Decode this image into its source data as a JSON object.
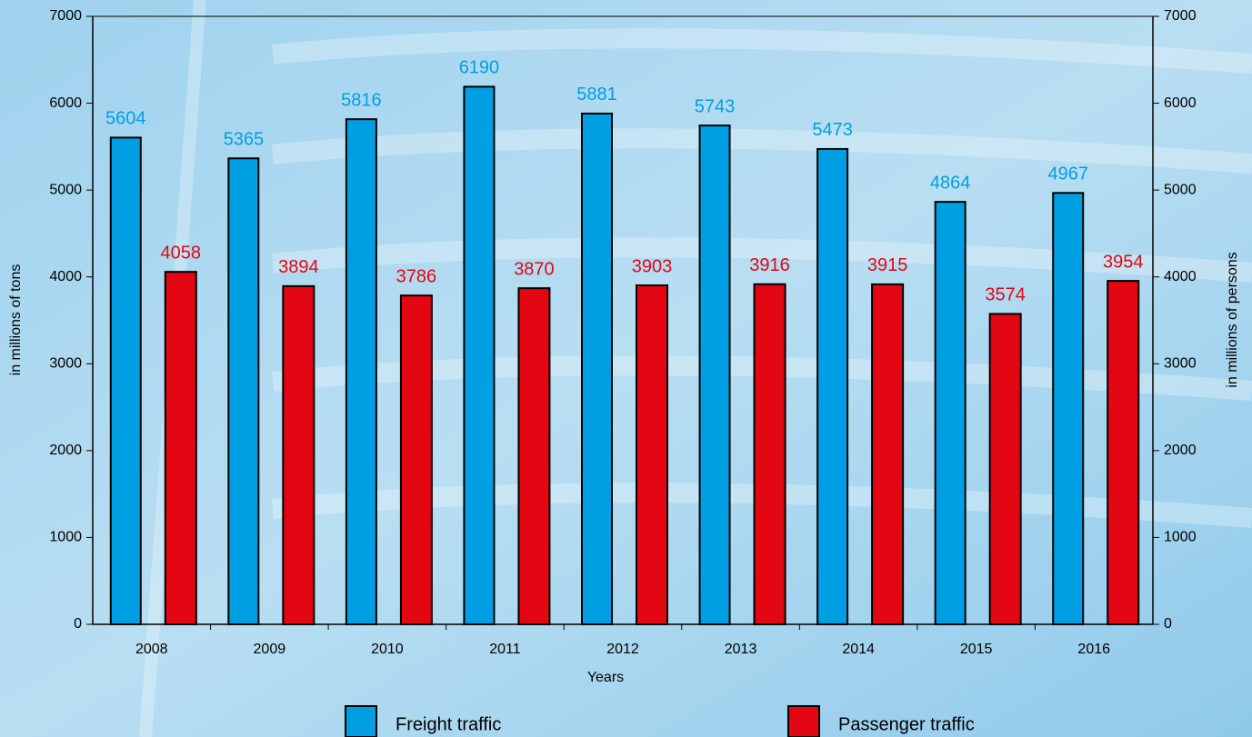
{
  "chart_data": {
    "type": "bar",
    "categories": [
      "2008",
      "2009",
      "2010",
      "2011",
      "2012",
      "2013",
      "2014",
      "2015",
      "2016"
    ],
    "series": [
      {
        "name": "Freight traffic",
        "color": "#009fe3",
        "values": [
          5604,
          5365,
          5816,
          6190,
          5881,
          5743,
          5473,
          4864,
          4967
        ]
      },
      {
        "name": "Passenger traffic",
        "color": "#e30613",
        "axis": "y2",
        "values": [
          4058,
          3894,
          3786,
          3870,
          3903,
          3916,
          3915,
          3574,
          3954
        ]
      }
    ],
    "x_label": "Years",
    "y_label": "in millions of tons",
    "y2_label": "in millions of persons",
    "ylim": [
      0,
      7000
    ],
    "yticks": [
      0,
      1000,
      2000,
      3000,
      4000,
      5000,
      6000,
      7000
    ],
    "y2lim": [
      0,
      7000
    ],
    "y2ticks": [
      0,
      1000,
      2000,
      3000,
      4000,
      5000,
      6000,
      7000
    ],
    "legend": "bottom",
    "grid": false
  }
}
